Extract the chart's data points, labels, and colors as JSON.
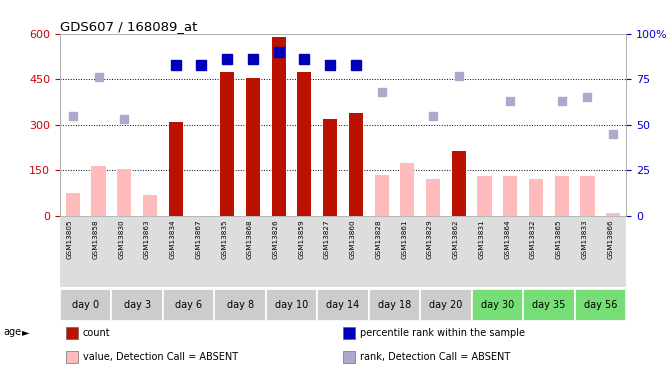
{
  "title": "GDS607 / 168089_at",
  "samples": [
    "GSM13805",
    "GSM13858",
    "GSM13830",
    "GSM13863",
    "GSM13834",
    "GSM13867",
    "GSM13835",
    "GSM13868",
    "GSM13826",
    "GSM13859",
    "GSM13827",
    "GSM13860",
    "GSM13828",
    "GSM13861",
    "GSM13829",
    "GSM13862",
    "GSM13831",
    "GSM13864",
    "GSM13832",
    "GSM13865",
    "GSM13833",
    "GSM13866"
  ],
  "age_groups": [
    {
      "label": "day 0",
      "start": 0,
      "end": 2,
      "green": false
    },
    {
      "label": "day 3",
      "start": 2,
      "end": 4,
      "green": false
    },
    {
      "label": "day 6",
      "start": 4,
      "end": 6,
      "green": false
    },
    {
      "label": "day 8",
      "start": 6,
      "end": 8,
      "green": false
    },
    {
      "label": "day 10",
      "start": 8,
      "end": 10,
      "green": false
    },
    {
      "label": "day 14",
      "start": 10,
      "end": 12,
      "green": false
    },
    {
      "label": "day 18",
      "start": 12,
      "end": 14,
      "green": false
    },
    {
      "label": "day 20",
      "start": 14,
      "end": 16,
      "green": false
    },
    {
      "label": "day 30",
      "start": 16,
      "end": 18,
      "green": true
    },
    {
      "label": "day 35",
      "start": 18,
      "end": 20,
      "green": true
    },
    {
      "label": "day 56",
      "start": 20,
      "end": 22,
      "green": true
    }
  ],
  "count_values": [
    null,
    null,
    null,
    null,
    310,
    null,
    475,
    455,
    590,
    475,
    320,
    340,
    null,
    null,
    null,
    215,
    null,
    null,
    null,
    null,
    null,
    null
  ],
  "rank_pct": [
    null,
    null,
    null,
    null,
    83,
    83,
    86,
    86,
    90,
    86,
    83,
    83,
    null,
    null,
    null,
    null,
    null,
    null,
    null,
    null,
    null,
    null
  ],
  "absent_value": [
    75,
    165,
    155,
    70,
    null,
    null,
    null,
    null,
    null,
    null,
    null,
    null,
    135,
    175,
    120,
    null,
    130,
    130,
    120,
    130,
    130,
    10
  ],
  "absent_rank_pct": [
    55,
    76,
    53,
    null,
    null,
    null,
    null,
    null,
    null,
    null,
    null,
    null,
    68,
    null,
    55,
    77,
    null,
    63,
    null,
    63,
    65,
    45
  ],
  "ylim_left": [
    0,
    600
  ],
  "ylim_right": [
    0,
    100
  ],
  "yticks_left": [
    0,
    150,
    300,
    450,
    600
  ],
  "yticks_right": [
    0,
    25,
    50,
    75,
    100
  ],
  "bar_color_present": "#bb1100",
  "bar_color_absent": "#ffbbbb",
  "dot_color_present": "#0000bb",
  "dot_color_absent": "#aaaacc",
  "bg_color": "#ffffff",
  "ylabel_left_color": "#cc0000",
  "ylabel_right_color": "#0000cc",
  "legend_items": [
    {
      "label": "count",
      "color": "#bb1100"
    },
    {
      "label": "percentile rank within the sample",
      "color": "#0000bb"
    },
    {
      "label": "value, Detection Call = ABSENT",
      "color": "#ffbbbb"
    },
    {
      "label": "rank, Detection Call = ABSENT",
      "color": "#aaaacc"
    }
  ]
}
